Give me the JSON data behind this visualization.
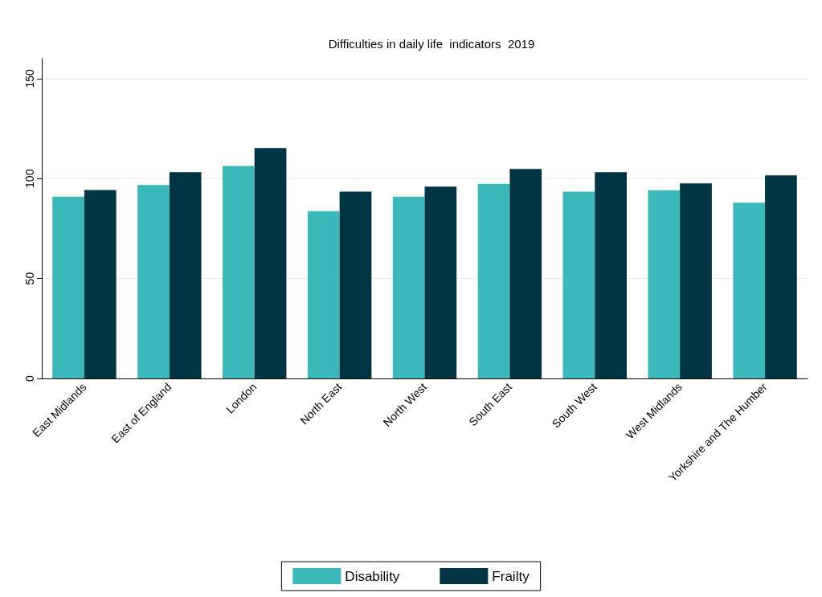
{
  "chart_data": {
    "type": "bar",
    "title": "Difficulties in daily life  indicators  2019",
    "categories": [
      "East Midlands",
      "East of England",
      "London",
      "North East",
      "North West",
      "South East",
      "South West",
      "West Midlands",
      "Yorkshire and The Humber"
    ],
    "series": [
      {
        "name": "Disability",
        "color": "#3bb8ba",
        "values": [
          91.0,
          96.8,
          106.3,
          83.7,
          91.0,
          97.4,
          93.5,
          94.2,
          87.9
        ]
      },
      {
        "name": "Frailty",
        "color": "#023543",
        "values": [
          94.3,
          103.2,
          115.3,
          93.5,
          96.0,
          104.8,
          103.2,
          97.6,
          101.6
        ]
      }
    ],
    "ylim": [
      0,
      160
    ],
    "yticks": [
      0,
      50,
      100,
      150
    ],
    "grid": "y",
    "legend": "bottom"
  }
}
